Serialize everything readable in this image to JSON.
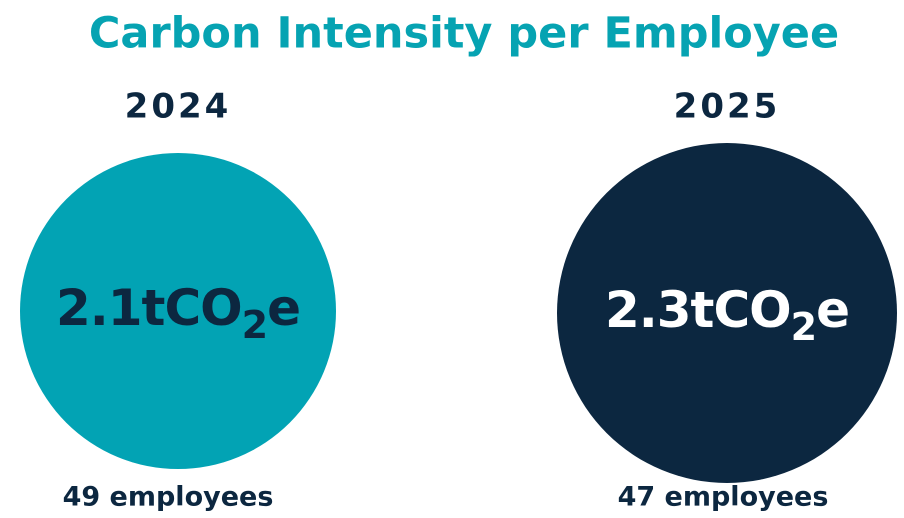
{
  "title": "Carbon Intensity per Employee",
  "items": [
    {
      "year": 2024,
      "value": 2.1,
      "unit": [
        "tCO",
        "2",
        "e"
      ],
      "employees": "49 employees",
      "color": "#02a3b4",
      "text_color": "#0c2740"
    },
    {
      "year": 2025,
      "value": 2.3,
      "unit": [
        "tCO",
        "2",
        "e"
      ],
      "employees": "47 employees",
      "color": "#0c2740",
      "text_color": "#ffffff"
    }
  ]
}
